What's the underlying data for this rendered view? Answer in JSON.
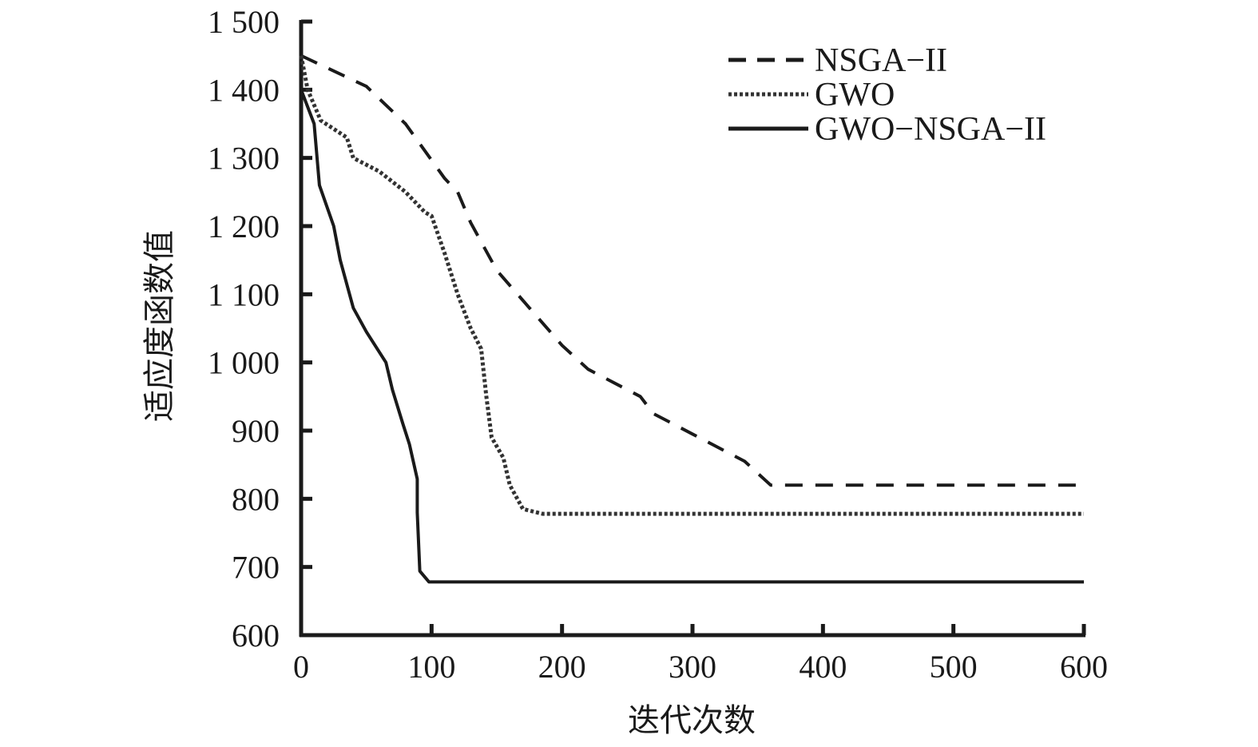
{
  "chart_data": {
    "type": "line",
    "title": "",
    "xlabel": "迭代次数",
    "ylabel": "适应度函数值",
    "xlim": [
      0,
      600
    ],
    "ylim": [
      600,
      1500
    ],
    "x_ticks": [
      0,
      100,
      200,
      300,
      400,
      500,
      600
    ],
    "x_tick_labels": [
      "0",
      "100",
      "200",
      "300",
      "400",
      "500",
      "600"
    ],
    "y_ticks": [
      600,
      700,
      800,
      900,
      1000,
      1100,
      1200,
      1300,
      1400,
      1500
    ],
    "y_tick_labels": [
      "600",
      "700",
      "800",
      "900",
      "1 000",
      "1 100",
      "1 200",
      "1 300",
      "1 400",
      "1 500"
    ],
    "grid": false,
    "legend_position": "top-right",
    "series": [
      {
        "name": "NSGA−II",
        "style": "dashed",
        "color": "#1a1a1a",
        "x": [
          0,
          50,
          80,
          110,
          120,
          130,
          150,
          175,
          200,
          220,
          260,
          270,
          300,
          340,
          360,
          600
        ],
        "y": [
          1450,
          1405,
          1350,
          1270,
          1250,
          1205,
          1135,
          1080,
          1025,
          990,
          950,
          925,
          895,
          855,
          820,
          820
        ]
      },
      {
        "name": "GWO",
        "style": "dotted",
        "color": "#333333",
        "x": [
          0,
          5,
          15,
          35,
          40,
          60,
          80,
          95,
          100,
          110,
          120,
          130,
          138,
          142,
          146,
          155,
          160,
          170,
          185,
          600
        ],
        "y": [
          1450,
          1400,
          1355,
          1330,
          1300,
          1280,
          1250,
          1220,
          1215,
          1160,
          1100,
          1050,
          1020,
          950,
          890,
          860,
          820,
          785,
          778,
          778
        ]
      },
      {
        "name": "GWO−NSGA−II",
        "style": "solid",
        "color": "#1a1a1a",
        "x": [
          0,
          10,
          14,
          25,
          30,
          40,
          50,
          65,
          70,
          78,
          83,
          89,
          89,
          91,
          98,
          600
        ],
        "y": [
          1400,
          1350,
          1260,
          1200,
          1150,
          1080,
          1045,
          1000,
          960,
          910,
          880,
          829,
          780,
          694,
          678,
          678
        ]
      }
    ]
  }
}
